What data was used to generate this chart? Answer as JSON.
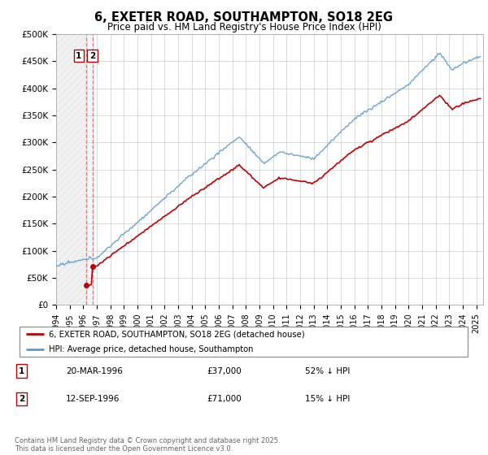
{
  "title": "6, EXETER ROAD, SOUTHAMPTON, SO18 2EG",
  "subtitle": "Price paid vs. HM Land Registry's House Price Index (HPI)",
  "ylim": [
    0,
    500000
  ],
  "yticks": [
    0,
    50000,
    100000,
    150000,
    200000,
    250000,
    300000,
    350000,
    400000,
    450000,
    500000
  ],
  "ytick_labels": [
    "£0",
    "£50K",
    "£100K",
    "£150K",
    "£200K",
    "£250K",
    "£300K",
    "£350K",
    "£400K",
    "£450K",
    "£500K"
  ],
  "xlim_start": 1994.0,
  "xlim_end": 2025.5,
  "transaction1": {
    "date_label": "20-MAR-1996",
    "date_num": 1996.22,
    "price": 37000,
    "label": "£37,000",
    "pct": "52% ↓ HPI"
  },
  "transaction2": {
    "date_label": "12-SEP-1996",
    "date_num": 1996.71,
    "price": 71000,
    "label": "£71,000",
    "pct": "15% ↓ HPI"
  },
  "hpi_color": "#5b9bd5",
  "price_color": "#c00000",
  "marker_color": "#c00000",
  "vline_color": "#e06060",
  "legend_label_red": "6, EXETER ROAD, SOUTHAMPTON, SO18 2EG (detached house)",
  "legend_label_blue": "HPI: Average price, detached house, Southampton",
  "copyright": "Contains HM Land Registry data © Crown copyright and database right 2025.\nThis data is licensed under the Open Government Licence v3.0.",
  "background_color": "#ffffff",
  "grid_color": "#cccccc"
}
